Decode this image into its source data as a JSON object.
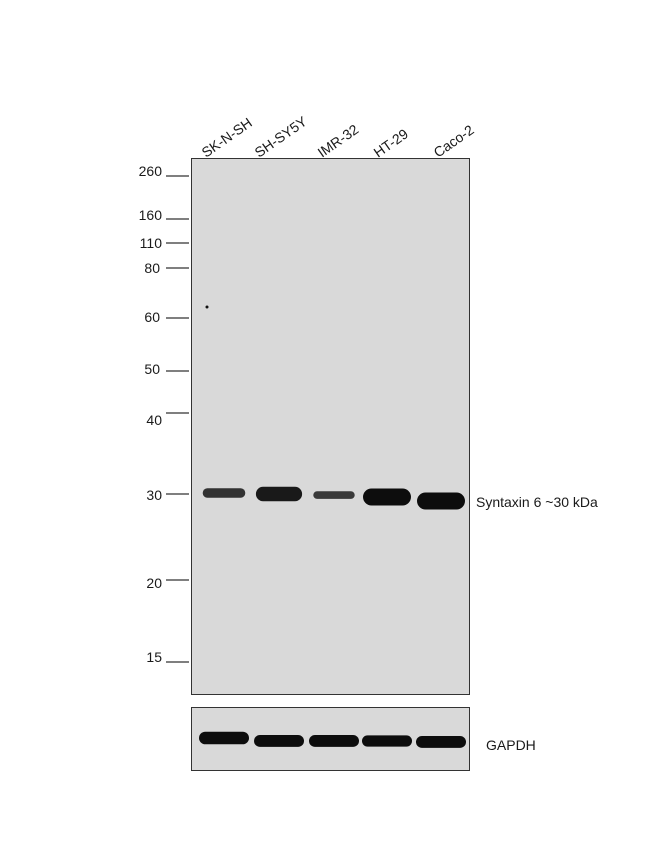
{
  "lanes": [
    "SK-N-SH",
    "SH-SY5Y",
    "IMR-32",
    "HT-29",
    "Caco-2"
  ],
  "markers": [
    "260",
    "160",
    "110",
    "80",
    "60",
    "50",
    "40",
    "30",
    "20",
    "15"
  ],
  "main_blot": {
    "band_label": "Syntaxin 6 ~30 kDa",
    "band_intensity": [
      0.55,
      0.85,
      0.45,
      1.0,
      1.0
    ]
  },
  "loading_control": {
    "label": "GAPDH",
    "band_intensity": [
      0.9,
      0.85,
      0.85,
      0.8,
      0.85
    ]
  },
  "colors": {
    "membrane": "#d9d9d9",
    "band": "#0d0d0d",
    "frame": "#333333"
  }
}
